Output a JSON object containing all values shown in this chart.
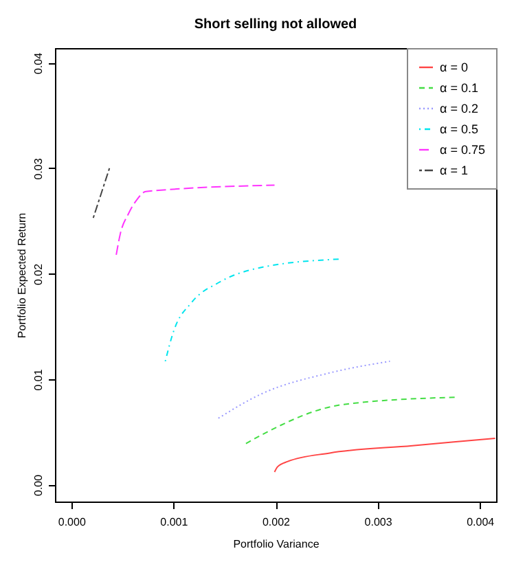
{
  "chart_data": {
    "type": "line",
    "title": "Short selling not allowed",
    "xlabel": "Portfolio Variance",
    "ylabel": "Portfolio Expected Return",
    "xlim": [
      -0.00016,
      0.00416
    ],
    "ylim": [
      -0.0016,
      0.0414
    ],
    "xticks": [
      {
        "value": 0,
        "label": "0.000"
      },
      {
        "value": 0.001,
        "label": "0.001"
      },
      {
        "value": 0.002,
        "label": "0.002"
      },
      {
        "value": 0.003,
        "label": "0.003"
      },
      {
        "value": 0.004,
        "label": "0.004"
      }
    ],
    "yticks": [
      {
        "value": 0,
        "label": "0.00"
      },
      {
        "value": 0.01,
        "label": "0.01"
      },
      {
        "value": 0.02,
        "label": "0.02"
      },
      {
        "value": 0.03,
        "label": "0.03"
      },
      {
        "value": 0.04,
        "label": "0.04"
      }
    ],
    "grid": false,
    "legend": "top right",
    "marker": "none",
    "series": [
      {
        "name": "α = 0",
        "color": "#ff4444",
        "line_style": "solid",
        "x": [
          0.00199,
          0.00202,
          0.00212,
          0.00253,
          0.00334,
          0.00415
        ],
        "values": [
          0.0012,
          0.0017,
          0.0022,
          0.003,
          0.0037,
          0.0044
        ]
      },
      {
        "name": "α = 0.1",
        "color": "#44dd44",
        "line_style": "dashed",
        "x": [
          0.00171,
          0.00186,
          0.00266,
          0.00378
        ],
        "values": [
          0.0039,
          0.0047,
          0.0076,
          0.0083
        ]
      },
      {
        "name": "α = 0.2",
        "color": "#9999ff",
        "line_style": "dotted",
        "x": [
          0.00144,
          0.00186,
          0.00253,
          0.00312
        ],
        "values": [
          0.0063,
          0.0086,
          0.0106,
          0.0117
        ]
      },
      {
        "name": "α = 0.5",
        "color": "#00e5ee",
        "line_style": "dashdot",
        "x": [
          0.00092,
          0.001,
          0.00118,
          0.00145,
          0.00186,
          0.00264
        ],
        "values": [
          0.0117,
          0.0145,
          0.0173,
          0.0192,
          0.0206,
          0.0214
        ]
      },
      {
        "name": "α = 0.75",
        "color": "#ff33ff",
        "line_style": "longdash",
        "x": [
          0.00044,
          0.00048,
          0.00056,
          0.00064,
          0.00073,
          0.00199
        ],
        "values": [
          0.0218,
          0.0238,
          0.0257,
          0.027,
          0.0278,
          0.0284
        ]
      },
      {
        "name": "α = 1",
        "color": "#444444",
        "line_style": "twodash",
        "x": [
          0.000215,
          0.00038
        ],
        "values": [
          0.0253,
          0.0302
        ]
      }
    ]
  }
}
